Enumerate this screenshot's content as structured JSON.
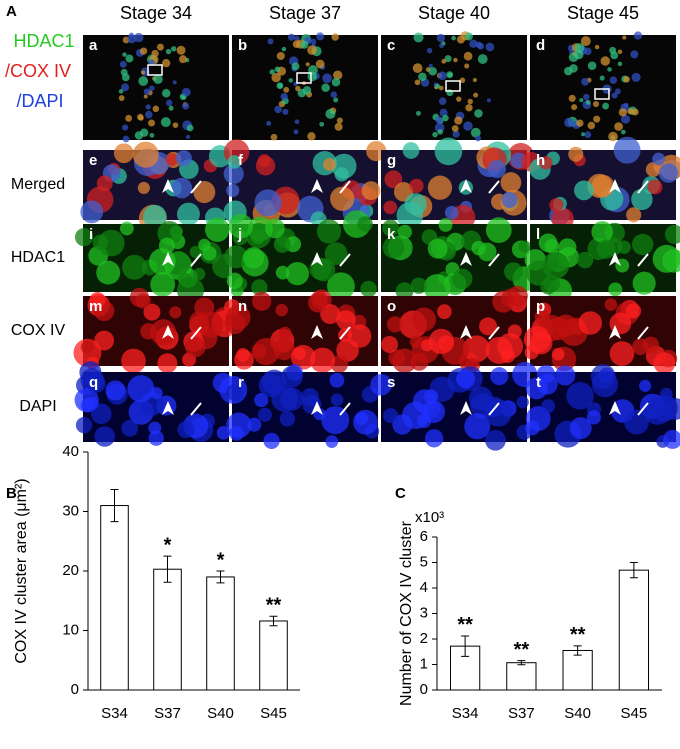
{
  "figure": {
    "panel_labels": [
      "A",
      "B",
      "C"
    ],
    "stages": [
      "Stage 34",
      "Stage 37",
      "Stage 40",
      "Stage 45"
    ],
    "channel_legend": [
      "HDAC1",
      "/COX IV",
      "/DAPI"
    ],
    "rows": [
      "Merged",
      "HDAC1",
      "COX IV",
      "DAPI"
    ],
    "image_letters": [
      "a",
      "b",
      "c",
      "d",
      "e",
      "f",
      "g",
      "h",
      "i",
      "j",
      "k",
      "l",
      "m",
      "n",
      "o",
      "p",
      "q",
      "r",
      "s",
      "t"
    ]
  },
  "chart_data": [
    {
      "type": "bar",
      "ylabel": "COX IV  cluster area (μm²)",
      "categories": [
        "S34",
        "S37",
        "S40",
        "S45"
      ],
      "values": [
        31,
        20.3,
        19,
        11.6
      ],
      "errors": [
        2.7,
        2.2,
        1,
        0.8
      ],
      "annotations": [
        null,
        "*",
        "*",
        "**"
      ],
      "color": "#ffffff",
      "ylim": [
        0,
        40
      ],
      "yticks": [
        0,
        10,
        20,
        30,
        40
      ]
    },
    {
      "type": "bar",
      "ylabel": "Number of COX IV cluster",
      "multiplier": "x10³",
      "categories": [
        "S34",
        "S37",
        "S40",
        "S45"
      ],
      "values": [
        1.72,
        1.07,
        1.55,
        4.7
      ],
      "errors": [
        0.4,
        0.08,
        0.18,
        0.3
      ],
      "annotations": [
        "**",
        "**",
        "**",
        null
      ],
      "color": "#ffffff",
      "ylim": [
        0,
        6
      ],
      "yticks": [
        0,
        1,
        2,
        3,
        4,
        5,
        6
      ]
    }
  ]
}
